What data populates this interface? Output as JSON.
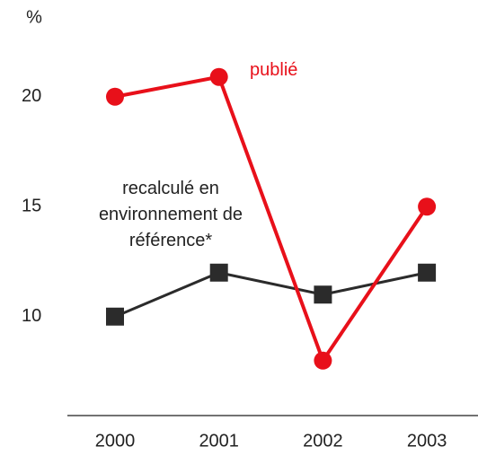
{
  "chart_data": {
    "type": "line",
    "y_label": "%",
    "categories": [
      "2000",
      "2001",
      "2002",
      "2003"
    ],
    "series": [
      {
        "name": "publié",
        "color": "#e8101a",
        "marker": "circle",
        "values": [
          20,
          20.9,
          8,
          15
        ]
      },
      {
        "name": "recalculé en environnement de référence*",
        "color": "#2b2b2b",
        "marker": "square",
        "values": [
          10,
          12,
          11,
          12
        ]
      }
    ],
    "ylim": [
      5.5,
      23.5
    ],
    "yticks": [
      10,
      15,
      20
    ],
    "grid": false
  }
}
